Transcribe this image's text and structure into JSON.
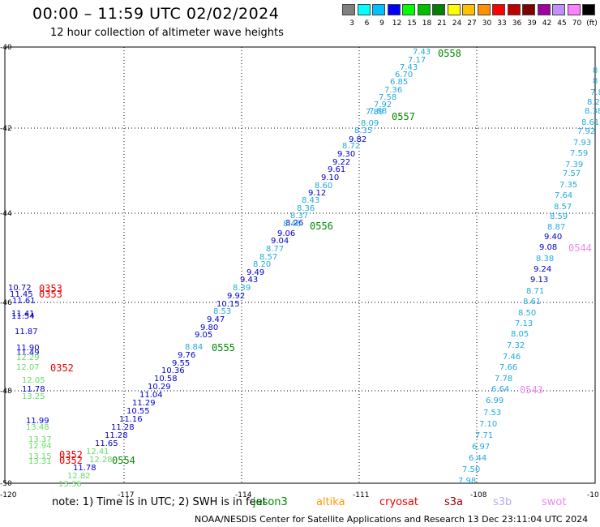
{
  "header": {
    "title": "00:00 – 11:59 UTC 02/02/2024",
    "subtitle": "12 hour collection of altimeter wave heights"
  },
  "color_scale": {
    "labels": [
      "3",
      "6",
      "9",
      "12",
      "15",
      "18",
      "21",
      "24",
      "27",
      "30",
      "33",
      "36",
      "39",
      "42",
      "45",
      "70",
      "(ft)"
    ],
    "colors": [
      "#808080",
      "#00ffff",
      "#00c0ff",
      "#0000ff",
      "#00ff00",
      "#00c000",
      "#008000",
      "#ffff00",
      "#ffc000",
      "#ff9000",
      "#ff0000",
      "#c00000",
      "#800000",
      "#a000a0",
      "#c090ff",
      "#ff80ff",
      "#000000"
    ]
  },
  "map": {
    "lon_labels": [
      "-120",
      "-117",
      "-114",
      "-111",
      "-108",
      "-10"
    ],
    "lat_labels": [
      "-40",
      "-42",
      "-44",
      "-46",
      "-48",
      "-50"
    ],
    "colors": {
      "light_blue": "#22aadd",
      "dark_blue": "#0000cc",
      "light_green": "#66dd66",
      "dark_green": "#008800",
      "red": "#ee0000",
      "pink": "#ee88ee"
    },
    "track_times": [
      {
        "text": "0558",
        "color": "dark_green"
      },
      {
        "text": "0557",
        "color": "dark_green"
      },
      {
        "text": "0556",
        "color": "dark_green"
      },
      {
        "text": "0555",
        "color": "dark_green"
      },
      {
        "text": "0554",
        "color": "dark_green"
      },
      {
        "text": "0353",
        "color": "red"
      },
      {
        "text": "0353",
        "color": "red"
      },
      {
        "text": "0352",
        "color": "red"
      },
      {
        "text": "0352",
        "color": "red"
      },
      {
        "text": "0352",
        "color": "red"
      },
      {
        "text": "0544",
        "color": "pink"
      },
      {
        "text": "0543",
        "color": "pink"
      }
    ],
    "wave_values": [
      {
        "text": "7.43",
        "color": "light_blue"
      },
      {
        "text": "7.17",
        "color": "light_blue"
      },
      {
        "text": "7.43",
        "color": "light_blue"
      },
      {
        "text": "6.70",
        "color": "light_blue"
      },
      {
        "text": "6.85",
        "color": "light_blue"
      },
      {
        "text": "7.36",
        "color": "light_blue"
      },
      {
        "text": "7.58",
        "color": "light_blue"
      },
      {
        "text": "7.92",
        "color": "light_blue"
      },
      {
        "text": "7.88",
        "color": "light_blue"
      },
      {
        "text": "7.89",
        "color": "light_blue"
      },
      {
        "text": "8.09",
        "color": "light_blue"
      },
      {
        "text": "8.35",
        "color": "light_blue"
      },
      {
        "text": "8.72",
        "color": "light_blue"
      },
      {
        "text": "9.82",
        "color": "dark_blue"
      },
      {
        "text": "9.30",
        "color": "dark_blue"
      },
      {
        "text": "9.22",
        "color": "dark_blue"
      },
      {
        "text": "9.61",
        "color": "dark_blue"
      },
      {
        "text": "9.10",
        "color": "dark_blue"
      },
      {
        "text": "8.60",
        "color": "light_blue"
      },
      {
        "text": "9.12",
        "color": "dark_blue"
      },
      {
        "text": "8.43",
        "color": "light_blue"
      },
      {
        "text": "8.36",
        "color": "light_blue"
      },
      {
        "text": "8.37",
        "color": "light_blue"
      },
      {
        "text": "8.26",
        "color": "dark_blue"
      },
      {
        "text": "8.46",
        "color": "light_blue"
      },
      {
        "text": "9.06",
        "color": "dark_blue"
      },
      {
        "text": "9.04",
        "color": "dark_blue"
      },
      {
        "text": "8.77",
        "color": "light_blue"
      },
      {
        "text": "8.57",
        "color": "light_blue"
      },
      {
        "text": "8.20",
        "color": "light_blue"
      },
      {
        "text": "9.49",
        "color": "dark_blue"
      },
      {
        "text": "9.43",
        "color": "dark_blue"
      },
      {
        "text": "8.39",
        "color": "light_blue"
      },
      {
        "text": "9.92",
        "color": "dark_blue"
      },
      {
        "text": "10.15",
        "color": "dark_blue"
      },
      {
        "text": "8.53",
        "color": "light_blue"
      },
      {
        "text": "9.47",
        "color": "dark_blue"
      },
      {
        "text": "9.80",
        "color": "dark_blue"
      },
      {
        "text": "9.05",
        "color": "dark_blue"
      },
      {
        "text": "8.84",
        "color": "light_blue"
      },
      {
        "text": "9.76",
        "color": "dark_blue"
      },
      {
        "text": "9.55",
        "color": "dark_blue"
      },
      {
        "text": "10.36",
        "color": "dark_blue"
      },
      {
        "text": "10.58",
        "color": "dark_blue"
      },
      {
        "text": "10.29",
        "color": "dark_blue"
      },
      {
        "text": "11.04",
        "color": "dark_blue"
      },
      {
        "text": "11.29",
        "color": "dark_blue"
      },
      {
        "text": "10.55",
        "color": "dark_blue"
      },
      {
        "text": "11.16",
        "color": "dark_blue"
      },
      {
        "text": "11.28",
        "color": "dark_blue"
      },
      {
        "text": "11.28",
        "color": "dark_blue"
      },
      {
        "text": "11.65",
        "color": "dark_blue"
      },
      {
        "text": "12.41",
        "color": "light_green"
      },
      {
        "text": "12.28",
        "color": "light_green"
      },
      {
        "text": "11.78",
        "color": "dark_blue"
      },
      {
        "text": "12.82",
        "color": "light_green"
      },
      {
        "text": "13.36",
        "color": "light_green"
      },
      {
        "text": "10.72",
        "color": "dark_blue"
      },
      {
        "text": "11.45",
        "color": "dark_blue"
      },
      {
        "text": "11.61",
        "color": "dark_blue"
      },
      {
        "text": "11.41",
        "color": "dark_blue"
      },
      {
        "text": "11.54",
        "color": "dark_blue"
      },
      {
        "text": "11.87",
        "color": "dark_blue"
      },
      {
        "text": "11.90",
        "color": "dark_blue"
      },
      {
        "text": "11.49",
        "color": "dark_blue"
      },
      {
        "text": "12.29",
        "color": "light_green"
      },
      {
        "text": "12.07",
        "color": "light_green"
      },
      {
        "text": "12.05",
        "color": "light_green"
      },
      {
        "text": "11.78",
        "color": "dark_blue"
      },
      {
        "text": "13.25",
        "color": "light_green"
      },
      {
        "text": "11.99",
        "color": "dark_blue"
      },
      {
        "text": "13.48",
        "color": "light_green"
      },
      {
        "text": "13.37",
        "color": "light_green"
      },
      {
        "text": "12.94",
        "color": "light_green"
      },
      {
        "text": "13.15",
        "color": "light_green"
      },
      {
        "text": "13.31",
        "color": "light_green"
      },
      {
        "text": "8",
        "color": "light_blue"
      },
      {
        "text": "8",
        "color": "light_blue"
      },
      {
        "text": "7.8",
        "color": "light_blue"
      },
      {
        "text": "8.2",
        "color": "light_blue"
      },
      {
        "text": "8.38",
        "color": "light_blue"
      },
      {
        "text": "8.61",
        "color": "light_blue"
      },
      {
        "text": "7.92",
        "color": "light_blue"
      },
      {
        "text": "7.93",
        "color": "light_blue"
      },
      {
        "text": "7.59",
        "color": "light_blue"
      },
      {
        "text": "7.39",
        "color": "light_blue"
      },
      {
        "text": "7.57",
        "color": "light_blue"
      },
      {
        "text": "7.35",
        "color": "light_blue"
      },
      {
        "text": "7.64",
        "color": "light_blue"
      },
      {
        "text": "8.57",
        "color": "light_blue"
      },
      {
        "text": "8.59",
        "color": "light_blue"
      },
      {
        "text": "8.87",
        "color": "light_blue"
      },
      {
        "text": "9.40",
        "color": "dark_blue"
      },
      {
        "text": "9.08",
        "color": "dark_blue"
      },
      {
        "text": "8.38",
        "color": "light_blue"
      },
      {
        "text": "9.24",
        "color": "dark_blue"
      },
      {
        "text": "9.13",
        "color": "dark_blue"
      },
      {
        "text": "8.71",
        "color": "light_blue"
      },
      {
        "text": "8.61",
        "color": "light_blue"
      },
      {
        "text": "8.50",
        "color": "light_blue"
      },
      {
        "text": "7.13",
        "color": "light_blue"
      },
      {
        "text": "8.05",
        "color": "light_blue"
      },
      {
        "text": "7.32",
        "color": "light_blue"
      },
      {
        "text": "7.46",
        "color": "light_blue"
      },
      {
        "text": "7.66",
        "color": "light_blue"
      },
      {
        "text": "7.78",
        "color": "light_blue"
      },
      {
        "text": "6.64",
        "color": "light_blue"
      },
      {
        "text": "6.99",
        "color": "light_blue"
      },
      {
        "text": "7.53",
        "color": "light_blue"
      },
      {
        "text": "7.10",
        "color": "light_blue"
      },
      {
        "text": "7.71",
        "color": "light_blue"
      },
      {
        "text": "6.97",
        "color": "light_blue"
      },
      {
        "text": "6.44",
        "color": "light_blue"
      },
      {
        "text": "7.50",
        "color": "light_blue"
      },
      {
        "text": "7.98",
        "color": "light_blue"
      }
    ]
  },
  "footer": {
    "note": "note: 1) Time is in UTC; 2) SWH is in feet",
    "satellites": [
      {
        "name": "jason3",
        "color": "#008800"
      },
      {
        "name": "altika",
        "color": "#ff9900"
      },
      {
        "name": "cryosat",
        "color": "#ee0000"
      },
      {
        "name": "s3a",
        "color": "#990000"
      },
      {
        "name": "s3b",
        "color": "#bbaaee"
      },
      {
        "name": "swot",
        "color": "#ee88ee"
      }
    ],
    "credit": "NOAA/NESDIS Center for Satellite Applications and Research   13 Dec 23:11:04 UTC 2024"
  }
}
